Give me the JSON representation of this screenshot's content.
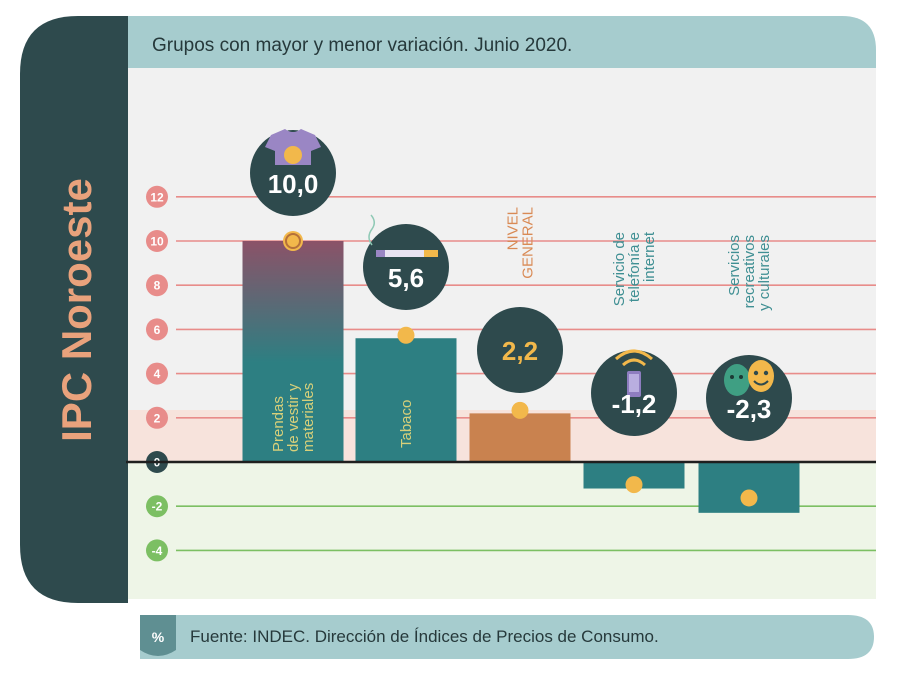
{
  "sidebar": {
    "title": "IPC Noroeste"
  },
  "header": {
    "subtitle": "Grupos con mayor y menor variación. Junio 2020."
  },
  "footer": {
    "badge": "%",
    "source": "Fuente: INDEC. Dirección de Índices de Precios de Consumo."
  },
  "colors": {
    "dark": "#2e4a4d",
    "teal": "#2d7f82",
    "header_band": "#a6ccce",
    "orange": "#c9824f",
    "accent_yellow": "#f2b84b",
    "positive_gridline": "#e88c8a",
    "negative_gridline": "#7cbf63",
    "plot_bg": "#f1f1f1",
    "negative_bg": "#eef5e7",
    "low_band": "#f7e3dc"
  },
  "chart_data": {
    "type": "bar",
    "subtitle": "Grupos con mayor y menor variación. Junio 2020.",
    "unit": "%",
    "categories": [
      "Prendas de vestir y materiales",
      "Tabaco",
      "NIVEL GENERAL",
      "Servicio de telefonía e internet",
      "Servicios recreativos y culturales"
    ],
    "values": [
      10.0,
      5.6,
      2.2,
      -1.2,
      -2.3
    ],
    "value_labels": [
      "10,0",
      "5,6",
      "2,2",
      "-1,2",
      "-2,3"
    ],
    "category_label_lines": [
      [
        "Prendas",
        "de vestir y",
        "materiales"
      ],
      [
        "Tabaco"
      ],
      [
        "NIVEL",
        "GENERAL"
      ],
      [
        "Servicio de",
        "telefonía e",
        "internet"
      ],
      [
        "Servicios",
        "recreativos",
        "y culturales"
      ]
    ],
    "bar_colors": [
      "#2d7f82",
      "#2d7f82",
      "#c9824f",
      "#2d7f82",
      "#2d7f82"
    ],
    "icons": [
      "shirt-icon",
      "cigarette-icon",
      "",
      "phone-wifi-icon",
      "theater-masks-icon"
    ],
    "yticks": [
      12,
      10,
      8,
      6,
      4,
      2,
      0,
      -2,
      -4
    ],
    "ylim": [
      -5,
      14
    ],
    "grid": true
  }
}
